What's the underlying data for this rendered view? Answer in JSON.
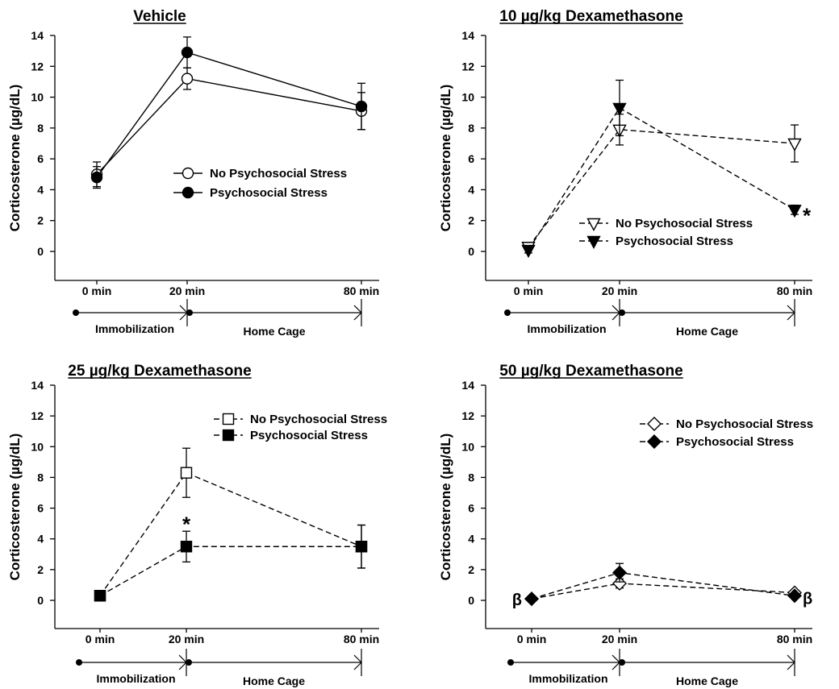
{
  "chart_data": [
    {
      "type": "line",
      "title": "Vehicle",
      "ylabel": "Corticosterone (µg/dL)",
      "ylim": [
        0,
        14
      ],
      "yticks": [
        0,
        2,
        4,
        6,
        8,
        10,
        12,
        14
      ],
      "x": [
        0,
        20,
        80
      ],
      "xtick_labels": [
        "0 min",
        "20 min",
        "80 min"
      ],
      "phases": [
        "Immobilization",
        "Home Cage"
      ],
      "legend_position": "right-middle",
      "series": [
        {
          "name": "No Psychosocial Stress",
          "marker": "circle",
          "filled": false,
          "dashed": false,
          "values": [
            5.0,
            11.2,
            9.1
          ],
          "errors": [
            0.8,
            0.7,
            1.2
          ]
        },
        {
          "name": "Psychosocial Stress",
          "marker": "circle",
          "filled": true,
          "dashed": false,
          "values": [
            4.8,
            12.9,
            9.4
          ],
          "errors": [
            0.7,
            1.0,
            1.5
          ]
        }
      ],
      "annotations": []
    },
    {
      "type": "line",
      "title": "10 µg/kg Dexamethasone",
      "ylabel": "Corticosterone (µg/dL)",
      "ylim": [
        0,
        14
      ],
      "yticks": [
        0,
        2,
        4,
        6,
        8,
        10,
        12,
        14
      ],
      "x": [
        0,
        20,
        80
      ],
      "xtick_labels": [
        "0 min",
        "20 min",
        "80 min"
      ],
      "phases": [
        "Immobilization",
        "Home Cage"
      ],
      "legend_position": "bottom-right",
      "series": [
        {
          "name": "No Psychosocial Stress",
          "marker": "triangle-down",
          "filled": false,
          "dashed": true,
          "values": [
            0.3,
            7.9,
            7.0
          ],
          "errors": [
            0.2,
            1.0,
            1.2
          ]
        },
        {
          "name": "Psychosocial Stress",
          "marker": "triangle-down",
          "filled": true,
          "dashed": true,
          "values": [
            0.1,
            9.3,
            2.7
          ],
          "errors": [
            0.2,
            1.8,
            0.3
          ]
        }
      ],
      "annotations": [
        {
          "text": "*",
          "x": 80,
          "y": 2.7,
          "placement": "right"
        }
      ]
    },
    {
      "type": "line",
      "title": "25 µg/kg Dexamethasone",
      "ylabel": "Corticosterone (µg/dL)",
      "ylim": [
        0,
        14
      ],
      "yticks": [
        0,
        2,
        4,
        6,
        8,
        10,
        12,
        14
      ],
      "x": [
        0,
        20,
        80
      ],
      "xtick_labels": [
        "0 min",
        "20 min",
        "80 min"
      ],
      "phases": [
        "Immobilization",
        "Home Cage"
      ],
      "legend_position": "top-right",
      "series": [
        {
          "name": "No Psychosocial Stress",
          "marker": "square",
          "filled": false,
          "dashed": true,
          "values": [
            0.3,
            8.3,
            3.5
          ],
          "errors": [
            0.1,
            1.6,
            1.4
          ]
        },
        {
          "name": "Psychosocial Stress",
          "marker": "square",
          "filled": true,
          "dashed": true,
          "values": [
            0.3,
            3.5,
            3.5
          ],
          "errors": [
            0.1,
            1.0,
            1.4
          ]
        }
      ],
      "annotations": [
        {
          "text": "*",
          "x": 20,
          "y": 3.5,
          "placement": "above"
        }
      ]
    },
    {
      "type": "line",
      "title": "50 µg/kg Dexamethasone",
      "ylabel": "Corticosterone (µg/dL)",
      "ylim": [
        0,
        14
      ],
      "yticks": [
        0,
        2,
        4,
        6,
        8,
        10,
        12,
        14
      ],
      "x": [
        0,
        20,
        80
      ],
      "xtick_labels": [
        "0 min",
        "20 min",
        "80 min"
      ],
      "phases": [
        "Immobilization",
        "Home Cage"
      ],
      "legend_position": "top-right",
      "series": [
        {
          "name": "No Psychosocial Stress",
          "marker": "diamond",
          "filled": false,
          "dashed": true,
          "values": [
            0.1,
            1.1,
            0.5
          ],
          "errors": [
            0.1,
            0.3,
            0.1
          ]
        },
        {
          "name": "Psychosocial Stress",
          "marker": "diamond",
          "filled": true,
          "dashed": true,
          "values": [
            0.1,
            1.8,
            0.3
          ],
          "errors": [
            0.1,
            0.6,
            0.1
          ]
        }
      ],
      "annotations": [
        {
          "text": "β",
          "x": 0,
          "y": 0.1,
          "placement": "left"
        },
        {
          "text": "β",
          "x": 80,
          "y": 0.3,
          "placement": "right"
        }
      ]
    }
  ]
}
